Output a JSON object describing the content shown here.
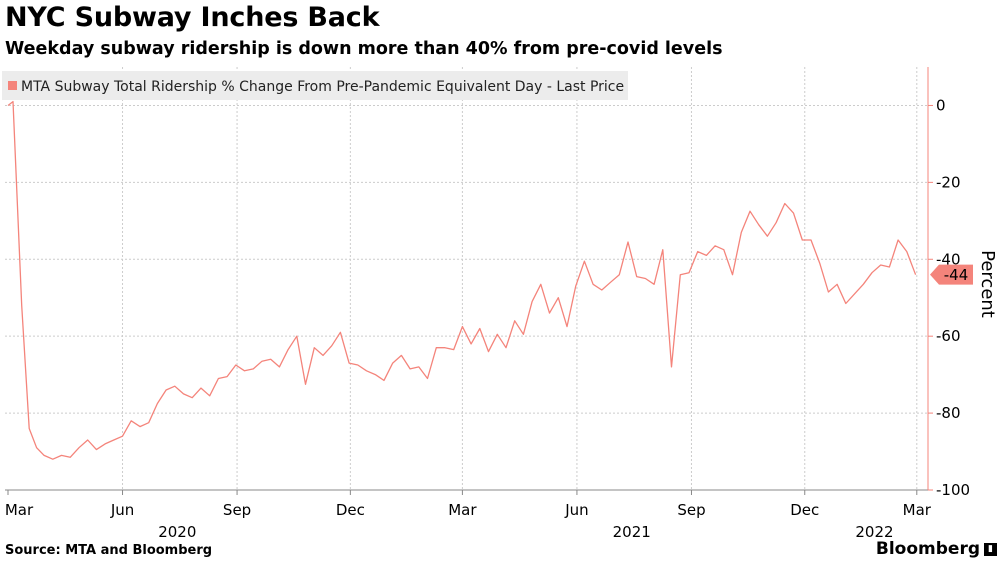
{
  "header": {
    "title": "NYC Subway Inches Back",
    "subtitle": "Weekday subway ridership is down more than 40% from pre-covid levels"
  },
  "footer": {
    "source": "Source: MTA and Bloomberg",
    "brand": "Bloomberg"
  },
  "colors": {
    "series": "#f4847b",
    "grid": "#cccccc",
    "label_fill": "#f4847b",
    "legend_bg": "#ececec"
  },
  "chart_data": {
    "type": "line",
    "ylabel": "Percent",
    "ylim": [
      -100,
      10
    ],
    "yticks": [
      0,
      -20,
      -40,
      -60,
      -80,
      -100
    ],
    "xlim": [
      "2020-03-01",
      "2022-03-10"
    ],
    "xticks": [
      {
        "date": "2020-03-01",
        "label": "Mar",
        "year": "2020"
      },
      {
        "date": "2020-06-01",
        "label": "Jun"
      },
      {
        "date": "2020-09-01",
        "label": "Sep"
      },
      {
        "date": "2020-12-01",
        "label": "Dec"
      },
      {
        "date": "2021-03-01",
        "label": "Mar"
      },
      {
        "date": "2021-06-01",
        "label": "Jun",
        "year": "2021"
      },
      {
        "date": "2021-09-01",
        "label": "Sep"
      },
      {
        "date": "2021-12-01",
        "label": "Dec"
      },
      {
        "date": "2022-03-01",
        "label": "Mar",
        "year": "2022"
      }
    ],
    "years": [
      {
        "label": "2020",
        "date": "2020-07-15"
      },
      {
        "label": "2021",
        "date": "2021-07-15"
      },
      {
        "label": "2022",
        "date": "2022-01-26"
      }
    ],
    "grid": true,
    "legend": "top-left",
    "series": [
      {
        "name": "MTA Subway Total Ridership % Change From Pre-Pandemic Equivalent Day - Last Price",
        "last_value_label": "-44",
        "points": [
          [
            "2020-03-01",
            0
          ],
          [
            "2020-03-05",
            1
          ],
          [
            "2020-03-12",
            -52
          ],
          [
            "2020-03-18",
            -84
          ],
          [
            "2020-03-24",
            -89
          ],
          [
            "2020-03-30",
            -91
          ],
          [
            "2020-04-06",
            -92
          ],
          [
            "2020-04-13",
            -91
          ],
          [
            "2020-04-20",
            -91.5
          ],
          [
            "2020-04-27",
            -89
          ],
          [
            "2020-05-04",
            -87
          ],
          [
            "2020-05-11",
            -89.5
          ],
          [
            "2020-05-18",
            -88
          ],
          [
            "2020-05-25",
            -87
          ],
          [
            "2020-06-01",
            -86
          ],
          [
            "2020-06-08",
            -82
          ],
          [
            "2020-06-15",
            -83.5
          ],
          [
            "2020-06-22",
            -82.5
          ],
          [
            "2020-06-29",
            -77.5
          ],
          [
            "2020-07-06",
            -74
          ],
          [
            "2020-07-13",
            -73
          ],
          [
            "2020-07-20",
            -75
          ],
          [
            "2020-07-27",
            -76
          ],
          [
            "2020-08-03",
            -73.5
          ],
          [
            "2020-08-10",
            -75.5
          ],
          [
            "2020-08-17",
            -71
          ],
          [
            "2020-08-24",
            -70.5
          ],
          [
            "2020-08-31",
            -67.5
          ],
          [
            "2020-09-07",
            -69
          ],
          [
            "2020-09-14",
            -68.5
          ],
          [
            "2020-09-21",
            -66.5
          ],
          [
            "2020-09-28",
            -66
          ],
          [
            "2020-10-05",
            -68
          ],
          [
            "2020-10-12",
            -63.5
          ],
          [
            "2020-10-19",
            -60
          ],
          [
            "2020-10-26",
            -72.5
          ],
          [
            "2020-11-02",
            -63
          ],
          [
            "2020-11-09",
            -65
          ],
          [
            "2020-11-16",
            -62.5
          ],
          [
            "2020-11-23",
            -59
          ],
          [
            "2020-11-30",
            -67
          ],
          [
            "2020-12-07",
            -67.5
          ],
          [
            "2020-12-14",
            -69
          ],
          [
            "2020-12-21",
            -70
          ],
          [
            "2020-12-28",
            -71.5
          ],
          [
            "2021-01-04",
            -67
          ],
          [
            "2021-01-11",
            -65
          ],
          [
            "2021-01-18",
            -68.5
          ],
          [
            "2021-01-25",
            -68
          ],
          [
            "2021-02-01",
            -71
          ],
          [
            "2021-02-08",
            -63
          ],
          [
            "2021-02-15",
            -63
          ],
          [
            "2021-02-22",
            -63.5
          ],
          [
            "2021-03-01",
            -57.5
          ],
          [
            "2021-03-08",
            -62
          ],
          [
            "2021-03-15",
            -58
          ],
          [
            "2021-03-22",
            -64
          ],
          [
            "2021-03-29",
            -59.5
          ],
          [
            "2021-04-05",
            -63
          ],
          [
            "2021-04-12",
            -56
          ],
          [
            "2021-04-19",
            -59.5
          ],
          [
            "2021-04-26",
            -51
          ],
          [
            "2021-05-03",
            -46.5
          ],
          [
            "2021-05-10",
            -54
          ],
          [
            "2021-05-17",
            -50
          ],
          [
            "2021-05-24",
            -57.5
          ],
          [
            "2021-05-31",
            -47
          ],
          [
            "2021-06-07",
            -40.5
          ],
          [
            "2021-06-14",
            -46.5
          ],
          [
            "2021-06-21",
            -48
          ],
          [
            "2021-06-28",
            -46
          ],
          [
            "2021-07-05",
            -44
          ],
          [
            "2021-07-12",
            -35.5
          ],
          [
            "2021-07-19",
            -44.5
          ],
          [
            "2021-07-26",
            -45
          ],
          [
            "2021-08-02",
            -46.5
          ],
          [
            "2021-08-09",
            -37.5
          ],
          [
            "2021-08-16",
            -68
          ],
          [
            "2021-08-23",
            -44
          ],
          [
            "2021-08-30",
            -43.5
          ],
          [
            "2021-09-06",
            -38
          ],
          [
            "2021-09-13",
            -39
          ],
          [
            "2021-09-20",
            -36.5
          ],
          [
            "2021-09-27",
            -37.5
          ],
          [
            "2021-10-04",
            -44
          ],
          [
            "2021-10-11",
            -33
          ],
          [
            "2021-10-18",
            -27.5
          ],
          [
            "2021-10-25",
            -31
          ],
          [
            "2021-11-01",
            -34
          ],
          [
            "2021-11-08",
            -30.5
          ],
          [
            "2021-11-15",
            -25.5
          ],
          [
            "2021-11-22",
            -28
          ],
          [
            "2021-11-29",
            -35
          ],
          [
            "2021-12-06",
            -35
          ],
          [
            "2021-12-13",
            -41
          ],
          [
            "2021-12-20",
            -48.5
          ],
          [
            "2021-12-27",
            -46.5
          ],
          [
            "2022-01-03",
            -51.5
          ],
          [
            "2022-01-10",
            -49
          ],
          [
            "2022-01-17",
            -46.5
          ],
          [
            "2022-01-24",
            -43.5
          ],
          [
            "2022-01-31",
            -41.5
          ],
          [
            "2022-02-07",
            -42
          ],
          [
            "2022-02-14",
            -35
          ],
          [
            "2022-02-21",
            -38
          ],
          [
            "2022-02-28",
            -44
          ]
        ]
      }
    ]
  }
}
